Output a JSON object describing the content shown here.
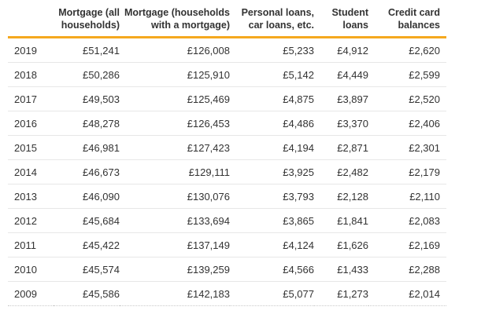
{
  "accent_color": "#f5a81e",
  "text_color": "#333333",
  "separator_color": "#e7e7e7",
  "table": {
    "columns": [
      {
        "name": "year",
        "label": ""
      },
      {
        "name": "mortgage-all-households",
        "label": "Mortgage (all\nhouseholds)"
      },
      {
        "name": "mortgage-households-with-mortgage",
        "label": "Mortgage (households\nwith a mortgage)"
      },
      {
        "name": "personal-loans",
        "label": "Personal loans,\ncar loans, etc."
      },
      {
        "name": "student-loans",
        "label": "Student\nloans"
      },
      {
        "name": "credit-card-balances",
        "label": "Credit card\nbalances"
      }
    ],
    "rows": [
      {
        "year": "2019",
        "values": [
          "£51,241",
          "£126,008",
          "£5,233",
          "£4,912",
          "£2,620"
        ]
      },
      {
        "year": "2018",
        "values": [
          "£50,286",
          "£125,910",
          "£5,142",
          "£4,449",
          "£2,599"
        ]
      },
      {
        "year": "2017",
        "values": [
          "£49,503",
          "£125,469",
          "£4,875",
          "£3,897",
          "£2,520"
        ]
      },
      {
        "year": "2016",
        "values": [
          "£48,278",
          "£126,453",
          "£4,486",
          "£3,370",
          "£2,406"
        ]
      },
      {
        "year": "2015",
        "values": [
          "£46,981",
          "£127,423",
          "£4,194",
          "£2,871",
          "£2,301"
        ]
      },
      {
        "year": "2014",
        "values": [
          "£46,673",
          "£129,111",
          "£3,925",
          "£2,482",
          "£2,179"
        ]
      },
      {
        "year": "2013",
        "values": [
          "£46,090",
          "£130,076",
          "£3,793",
          "£2,128",
          "£2,110"
        ]
      },
      {
        "year": "2012",
        "values": [
          "£45,684",
          "£133,694",
          "£3,865",
          "£1,841",
          "£2,083"
        ]
      },
      {
        "year": "2011",
        "values": [
          "£45,422",
          "£137,149",
          "£4,124",
          "£1,626",
          "£2,169"
        ]
      },
      {
        "year": "2010",
        "values": [
          "£45,574",
          "£139,259",
          "£4,566",
          "£1,433",
          "£2,288"
        ]
      },
      {
        "year": "2009",
        "values": [
          "£45,586",
          "£142,183",
          "£5,077",
          "£1,273",
          "£2,014"
        ]
      }
    ]
  },
  "chart_data": {
    "type": "table",
    "title": "",
    "unit": "GBP (£)",
    "categories": [
      "2019",
      "2018",
      "2017",
      "2016",
      "2015",
      "2014",
      "2013",
      "2012",
      "2011",
      "2010",
      "2009"
    ],
    "series": [
      {
        "name": "Mortgage (all households)",
        "values": [
          51241,
          50286,
          49503,
          48278,
          46981,
          46673,
          46090,
          45684,
          45422,
          45574,
          45586
        ]
      },
      {
        "name": "Mortgage (households with a mortgage)",
        "values": [
          126008,
          125910,
          125469,
          126453,
          127423,
          129111,
          130076,
          133694,
          137149,
          139259,
          142183
        ]
      },
      {
        "name": "Personal loans, car loans, etc.",
        "values": [
          5233,
          5142,
          4875,
          4486,
          4194,
          3925,
          3793,
          3865,
          4124,
          4566,
          5077
        ]
      },
      {
        "name": "Student loans",
        "values": [
          4912,
          4449,
          3897,
          3370,
          2871,
          2482,
          2128,
          1841,
          1626,
          1433,
          1273
        ]
      },
      {
        "name": "Credit card balances",
        "values": [
          2620,
          2599,
          2520,
          2406,
          2301,
          2179,
          2110,
          2083,
          2169,
          2288,
          2014
        ]
      }
    ],
    "layout_hints": {
      "first_column": "year, left-aligned",
      "value_columns": "right-aligned",
      "header_rule_color": "#f5a81e",
      "grid": "horizontal row separators only"
    }
  }
}
